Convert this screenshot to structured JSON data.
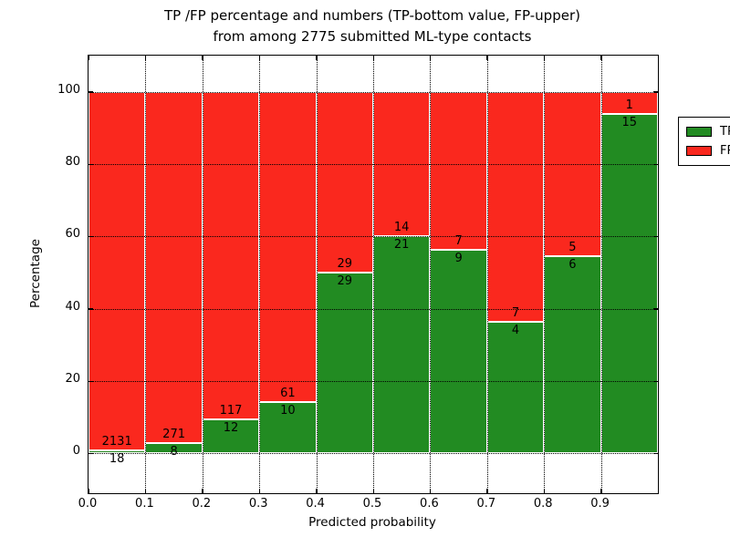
{
  "figure": {
    "title_line1": "TP /FP percentage and numbers (TP-bottom value, FP-upper)",
    "title_line2": "from among 2775 submitted ML-type contacts"
  },
  "chart_data": {
    "type": "bar",
    "variant": "stacked-percentage-histogram",
    "title": "TP /FP percentage and numbers (TP-bottom value, FP-upper) from among 2775 submitted ML-type contacts",
    "xlabel": "Predicted probability",
    "ylabel": "Percentage",
    "xlim": [
      0.0,
      1.0
    ],
    "ylim": [
      -11,
      110
    ],
    "x_tick_labels": [
      "0.0",
      "0.1",
      "0.2",
      "0.3",
      "0.4",
      "0.5",
      "0.6",
      "0.7",
      "0.8",
      "0.9"
    ],
    "x_tick_values": [
      0.0,
      0.1,
      0.2,
      0.3,
      0.4,
      0.5,
      0.6,
      0.7,
      0.8,
      0.9
    ],
    "y_tick_values": [
      0,
      20,
      40,
      60,
      80,
      100
    ],
    "grid": true,
    "grid_style": "dotted",
    "legend_position": "upper right",
    "bin_width": 0.1,
    "bin_starts": [
      0.0,
      0.1,
      0.2,
      0.3,
      0.4,
      0.5,
      0.6,
      0.7,
      0.8,
      0.9
    ],
    "series": [
      {
        "name": "TP",
        "color": "#228b22",
        "counts": [
          18,
          8,
          12,
          10,
          29,
          21,
          9,
          4,
          6,
          15
        ]
      },
      {
        "name": "FP",
        "color": "#fa281e",
        "counts": [
          2131,
          271,
          117,
          61,
          29,
          14,
          7,
          7,
          5,
          1
        ]
      }
    ],
    "tp_percent_per_bin": [
      0.84,
      2.87,
      9.3,
      14.08,
      50.0,
      60.0,
      56.25,
      36.36,
      54.55,
      93.75
    ],
    "total_contacts": 2775
  },
  "legend": {
    "items": [
      {
        "label": "TP",
        "color": "#228b22"
      },
      {
        "label": "FP",
        "color": "#fa281e"
      }
    ]
  },
  "colors": {
    "tp": "#228b22",
    "fp": "#fa281e",
    "bar_edge": "#ffffff",
    "grid": "#000000",
    "text": "#000000",
    "background": "#ffffff"
  }
}
